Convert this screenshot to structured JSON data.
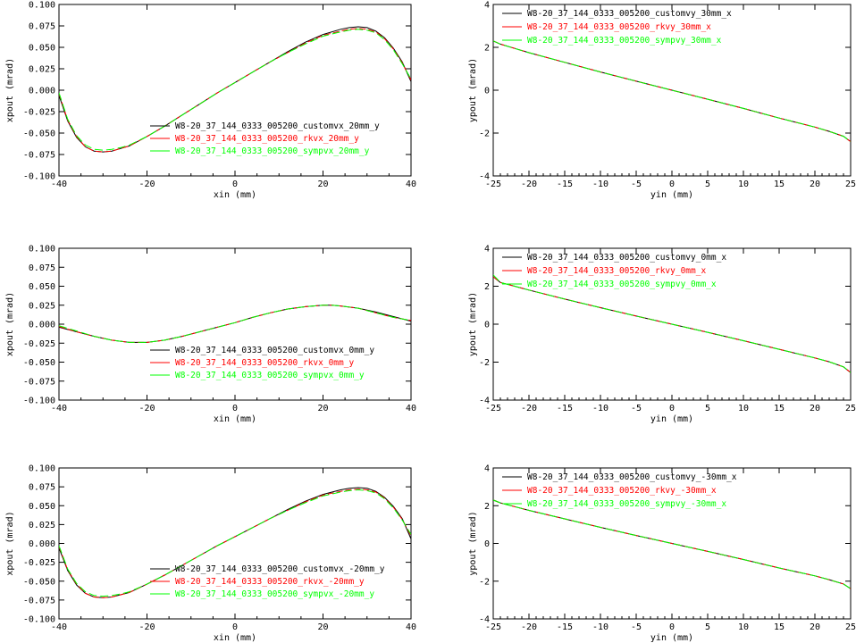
{
  "colors": {
    "custom": "#000000",
    "rk": "#ff0000",
    "symp": "#00ff00",
    "frame": "#000000"
  },
  "chart_data": [
    {
      "type": "line",
      "xlabel": "xin (mm)",
      "ylabel": "xpout (mrad)",
      "xlim": [
        -40,
        40
      ],
      "ylim": [
        -0.1,
        0.1
      ],
      "xticks": [
        "-40",
        "-20",
        "0",
        "20",
        "40"
      ],
      "xtick_values": [
        -40,
        -20,
        0,
        20,
        40
      ],
      "yticks": [
        "-0.100",
        "-0.075",
        "-0.050",
        "-0.025",
        "0.000",
        "0.025",
        "0.050",
        "0.075",
        "0.100"
      ],
      "ytick_values": [
        -0.1,
        -0.075,
        -0.05,
        -0.025,
        0,
        0.025,
        0.05,
        0.075,
        0.1
      ],
      "legend_position": "lower-right",
      "x": [
        -40,
        -38,
        -36,
        -34,
        -32,
        -30,
        -28,
        -26,
        -24,
        -20,
        -16,
        -12,
        -8,
        -4,
        0,
        4,
        8,
        12,
        16,
        20,
        24,
        26,
        28,
        30,
        32,
        34,
        36,
        38,
        40
      ],
      "series": [
        {
          "name": "W8-20_37_144_0333_005200_customvx_20mm_y",
          "color_key": "custom",
          "dashed": false,
          "values": [
            -0.006,
            -0.036,
            -0.055,
            -0.066,
            -0.071,
            -0.072,
            -0.071,
            -0.068,
            -0.065,
            -0.054,
            -0.042,
            -0.029,
            -0.016,
            -0.003,
            0.009,
            0.021,
            0.033,
            0.045,
            0.056,
            0.065,
            0.071,
            0.073,
            0.074,
            0.073,
            0.069,
            0.061,
            0.049,
            0.033,
            0.01
          ]
        },
        {
          "name": "W8-20_37_144_0333_005200_rkvx_20mm_y",
          "color_key": "rk",
          "dashed": true,
          "values": [
            -0.004,
            -0.035,
            -0.054,
            -0.066,
            -0.071,
            -0.072,
            -0.071,
            -0.068,
            -0.065,
            -0.054,
            -0.042,
            -0.029,
            -0.016,
            -0.003,
            0.009,
            0.021,
            0.033,
            0.044,
            0.055,
            0.064,
            0.069,
            0.071,
            0.072,
            0.071,
            0.068,
            0.06,
            0.048,
            0.032,
            0.012
          ]
        },
        {
          "name": "W8-20_37_144_0333_005200_sympvx_20mm_y",
          "color_key": "symp",
          "dashed": true,
          "values": [
            -0.003,
            -0.034,
            -0.053,
            -0.064,
            -0.069,
            -0.07,
            -0.069,
            -0.067,
            -0.064,
            -0.054,
            -0.042,
            -0.029,
            -0.016,
            -0.003,
            0.009,
            0.021,
            0.033,
            0.044,
            0.054,
            0.063,
            0.068,
            0.07,
            0.071,
            0.07,
            0.067,
            0.059,
            0.047,
            0.031,
            0.013
          ]
        }
      ]
    },
    {
      "type": "line",
      "xlabel": "yin (mm)",
      "ylabel": "ypout (mrad)",
      "xlim": [
        -25,
        25
      ],
      "ylim": [
        -4,
        4
      ],
      "xticks": [
        "-25",
        "-20",
        "-15",
        "-10",
        "-5",
        "0",
        "5",
        "10",
        "15",
        "20",
        "25"
      ],
      "xtick_values": [
        -25,
        -20,
        -15,
        -10,
        -5,
        0,
        5,
        10,
        15,
        20,
        25
      ],
      "yticks": [
        "-4",
        "-2",
        "0",
        "2",
        "4"
      ],
      "ytick_values": [
        -4,
        -2,
        0,
        2,
        4
      ],
      "legend_position": "top-left",
      "x": [
        -25,
        -24,
        -22,
        -20,
        -15,
        -10,
        -5,
        0,
        5,
        10,
        15,
        20,
        22,
        24,
        25
      ],
      "series": [
        {
          "name": "W8-20_37_144_0333_005200_customvy_30mm_x",
          "color_key": "custom",
          "dashed": false,
          "values": [
            2.3,
            2.15,
            1.95,
            1.75,
            1.3,
            0.85,
            0.42,
            0.0,
            -0.42,
            -0.85,
            -1.3,
            -1.72,
            -1.92,
            -2.15,
            -2.4
          ]
        },
        {
          "name": "W8-20_37_144_0333_005200_rkvy_30mm_x",
          "color_key": "rk",
          "dashed": true,
          "values": [
            2.3,
            2.15,
            1.95,
            1.75,
            1.3,
            0.85,
            0.42,
            0.0,
            -0.42,
            -0.85,
            -1.3,
            -1.72,
            -1.92,
            -2.15,
            -2.4
          ]
        },
        {
          "name": "W8-20_37_144_0333_005200_sympvy_30mm_x",
          "color_key": "symp",
          "dashed": true,
          "values": [
            2.3,
            2.15,
            1.95,
            1.75,
            1.3,
            0.85,
            0.42,
            0.0,
            -0.42,
            -0.85,
            -1.3,
            -1.72,
            -1.92,
            -2.15,
            -2.4
          ]
        }
      ]
    },
    {
      "type": "line",
      "xlabel": "xin (mm)",
      "ylabel": "xpout (mrad)",
      "xlim": [
        -40,
        40
      ],
      "ylim": [
        -0.1,
        0.1
      ],
      "xticks": [
        "-40",
        "-20",
        "0",
        "20",
        "40"
      ],
      "xtick_values": [
        -40,
        -20,
        0,
        20,
        40
      ],
      "yticks": [
        "-0.100",
        "-0.075",
        "-0.050",
        "-0.025",
        "0.000",
        "0.025",
        "0.050",
        "0.075",
        "0.100"
      ],
      "ytick_values": [
        -0.1,
        -0.075,
        -0.05,
        -0.025,
        0,
        0.025,
        0.05,
        0.075,
        0.1
      ],
      "legend_position": "lower-right",
      "x": [
        -40,
        -36,
        -32,
        -28,
        -24,
        -22,
        -20,
        -16,
        -12,
        -8,
        -4,
        0,
        4,
        8,
        12,
        16,
        20,
        22,
        24,
        28,
        32,
        36,
        40
      ],
      "series": [
        {
          "name": "W8-20_37_144_0333_005200_customvx_0mm_y",
          "color_key": "custom",
          "dashed": false,
          "values": [
            -0.004,
            -0.01,
            -0.016,
            -0.021,
            -0.024,
            -0.024,
            -0.024,
            -0.021,
            -0.016,
            -0.01,
            -0.004,
            0.002,
            0.009,
            0.015,
            0.02,
            0.023,
            0.025,
            0.025,
            0.024,
            0.021,
            0.016,
            0.01,
            0.004
          ]
        },
        {
          "name": "W8-20_37_144_0333_005200_rkvx_0mm_y",
          "color_key": "rk",
          "dashed": true,
          "values": [
            -0.003,
            -0.01,
            -0.016,
            -0.021,
            -0.024,
            -0.024,
            -0.024,
            -0.021,
            -0.016,
            -0.01,
            -0.004,
            0.002,
            0.009,
            0.015,
            0.02,
            0.023,
            0.025,
            0.025,
            0.024,
            0.021,
            0.015,
            0.009,
            0.005
          ]
        },
        {
          "name": "W8-20_37_144_0333_005200_sympvx_0mm_y",
          "color_key": "symp",
          "dashed": true,
          "values": [
            -0.002,
            -0.009,
            -0.016,
            -0.021,
            -0.024,
            -0.024,
            -0.024,
            -0.021,
            -0.016,
            -0.01,
            -0.004,
            0.002,
            0.009,
            0.015,
            0.02,
            0.023,
            0.025,
            0.025,
            0.024,
            0.021,
            0.015,
            0.009,
            0.005
          ]
        }
      ]
    },
    {
      "type": "line",
      "xlabel": "yin (mm)",
      "ylabel": "ypout (mrad)",
      "xlim": [
        -25,
        25
      ],
      "ylim": [
        -4,
        4
      ],
      "xticks": [
        "-25",
        "-20",
        "-15",
        "-10",
        "-5",
        "0",
        "5",
        "10",
        "15",
        "20",
        "25"
      ],
      "xtick_values": [
        -25,
        -20,
        -15,
        -10,
        -5,
        0,
        5,
        10,
        15,
        20,
        25
      ],
      "yticks": [
        "-4",
        "-2",
        "0",
        "2",
        "4"
      ],
      "ytick_values": [
        -4,
        -2,
        0,
        2,
        4
      ],
      "legend_position": "top-left",
      "x": [
        -25,
        -24.5,
        -24,
        -22,
        -20,
        -15,
        -10,
        -5,
        0,
        5,
        10,
        15,
        20,
        22,
        24,
        25
      ],
      "series": [
        {
          "name": "W8-20_37_144_0333_005200_customvy_0mm_x",
          "color_key": "custom",
          "dashed": false,
          "values": [
            2.5,
            2.35,
            2.2,
            2.0,
            1.8,
            1.32,
            0.87,
            0.43,
            0.0,
            -0.43,
            -0.87,
            -1.32,
            -1.78,
            -1.98,
            -2.25,
            -2.55
          ]
        },
        {
          "name": "W8-20_37_144_0333_005200_rkvy_0mm_x",
          "color_key": "rk",
          "dashed": true,
          "values": [
            2.5,
            2.35,
            2.2,
            2.0,
            1.8,
            1.32,
            0.87,
            0.43,
            0.0,
            -0.43,
            -0.87,
            -1.32,
            -1.78,
            -1.98,
            -2.25,
            -2.55
          ]
        },
        {
          "name": "W8-20_37_144_0333_005200_sympvy_0mm_x",
          "color_key": "symp",
          "dashed": true,
          "values": [
            2.6,
            2.4,
            2.2,
            2.0,
            1.8,
            1.32,
            0.87,
            0.43,
            0.0,
            -0.43,
            -0.87,
            -1.32,
            -1.78,
            -1.98,
            -2.25,
            -2.55
          ]
        }
      ]
    },
    {
      "type": "line",
      "xlabel": "xin (mm)",
      "ylabel": "xpout (mrad)",
      "xlim": [
        -40,
        40
      ],
      "ylim": [
        -0.1,
        0.1
      ],
      "xticks": [
        "-40",
        "-20",
        "0",
        "20",
        "40"
      ],
      "xtick_values": [
        -40,
        -20,
        0,
        20,
        40
      ],
      "yticks": [
        "-0.100",
        "-0.075",
        "-0.050",
        "-0.025",
        "0.000",
        "0.025",
        "0.050",
        "0.075",
        "0.100"
      ],
      "ytick_values": [
        -0.1,
        -0.075,
        -0.05,
        -0.025,
        0,
        0.025,
        0.05,
        0.075,
        0.1
      ],
      "legend_position": "lower-right",
      "x": [
        -40,
        -38,
        -36,
        -34,
        -32,
        -30,
        -28,
        -26,
        -24,
        -20,
        -16,
        -12,
        -8,
        -4,
        0,
        4,
        8,
        12,
        16,
        20,
        24,
        26,
        28,
        30,
        32,
        34,
        36,
        38,
        40
      ],
      "series": [
        {
          "name": "W8-20_37_144_0333_005200_customvx_-20mm_y",
          "color_key": "custom",
          "dashed": false,
          "values": [
            -0.006,
            -0.036,
            -0.055,
            -0.066,
            -0.071,
            -0.072,
            -0.071,
            -0.068,
            -0.065,
            -0.054,
            -0.042,
            -0.029,
            -0.016,
            -0.003,
            0.009,
            0.021,
            0.033,
            0.045,
            0.056,
            0.065,
            0.071,
            0.073,
            0.074,
            0.073,
            0.069,
            0.061,
            0.049,
            0.033,
            0.006
          ]
        },
        {
          "name": "W8-20_37_144_0333_005200_rkvx_-20mm_y",
          "color_key": "rk",
          "dashed": true,
          "values": [
            -0.004,
            -0.035,
            -0.054,
            -0.066,
            -0.071,
            -0.072,
            -0.071,
            -0.068,
            -0.065,
            -0.054,
            -0.042,
            -0.029,
            -0.016,
            -0.003,
            0.009,
            0.021,
            0.033,
            0.044,
            0.055,
            0.064,
            0.069,
            0.071,
            0.072,
            0.071,
            0.068,
            0.06,
            0.048,
            0.032,
            0.01
          ]
        },
        {
          "name": "W8-20_37_144_0333_005200_sympvx_-20mm_y",
          "color_key": "symp",
          "dashed": true,
          "values": [
            -0.003,
            -0.034,
            -0.053,
            -0.064,
            -0.069,
            -0.07,
            -0.069,
            -0.067,
            -0.064,
            -0.054,
            -0.042,
            -0.029,
            -0.016,
            -0.003,
            0.009,
            0.021,
            0.033,
            0.044,
            0.054,
            0.063,
            0.068,
            0.07,
            0.071,
            0.07,
            0.067,
            0.059,
            0.047,
            0.031,
            0.012
          ]
        }
      ]
    },
    {
      "type": "line",
      "xlabel": "yin (mm)",
      "ylabel": "ypout (mrad)",
      "xlim": [
        -25,
        25
      ],
      "ylim": [
        -4,
        4
      ],
      "xticks": [
        "-25",
        "-20",
        "-15",
        "-10",
        "-5",
        "0",
        "5",
        "10",
        "15",
        "20",
        "25"
      ],
      "xtick_values": [
        -25,
        -20,
        -15,
        -10,
        -5,
        0,
        5,
        10,
        15,
        20,
        25
      ],
      "yticks": [
        "-4",
        "-2",
        "0",
        "2",
        "4"
      ],
      "ytick_values": [
        -4,
        -2,
        0,
        2,
        4
      ],
      "legend_position": "top-left",
      "x": [
        -25,
        -24,
        -22,
        -20,
        -15,
        -10,
        -5,
        0,
        5,
        10,
        15,
        20,
        22,
        24,
        25
      ],
      "series": [
        {
          "name": "W8-20_37_144_0333_005200_customvy_-30mm_x",
          "color_key": "custom",
          "dashed": false,
          "values": [
            2.3,
            2.15,
            1.95,
            1.75,
            1.3,
            0.85,
            0.42,
            0.0,
            -0.42,
            -0.85,
            -1.3,
            -1.72,
            -1.92,
            -2.15,
            -2.4
          ]
        },
        {
          "name": "W8-20_37_144_0333_005200_rkvy_-30mm_x",
          "color_key": "rk",
          "dashed": true,
          "values": [
            2.3,
            2.15,
            1.95,
            1.75,
            1.3,
            0.85,
            0.42,
            0.0,
            -0.42,
            -0.85,
            -1.3,
            -1.72,
            -1.92,
            -2.15,
            -2.4
          ]
        },
        {
          "name": "W8-20_37_144_0333_005200_sympvy_-30mm_x",
          "color_key": "symp",
          "dashed": true,
          "values": [
            2.3,
            2.15,
            1.95,
            1.75,
            1.3,
            0.85,
            0.42,
            0.0,
            -0.42,
            -0.85,
            -1.3,
            -1.72,
            -1.92,
            -2.15,
            -2.4
          ]
        }
      ]
    }
  ]
}
